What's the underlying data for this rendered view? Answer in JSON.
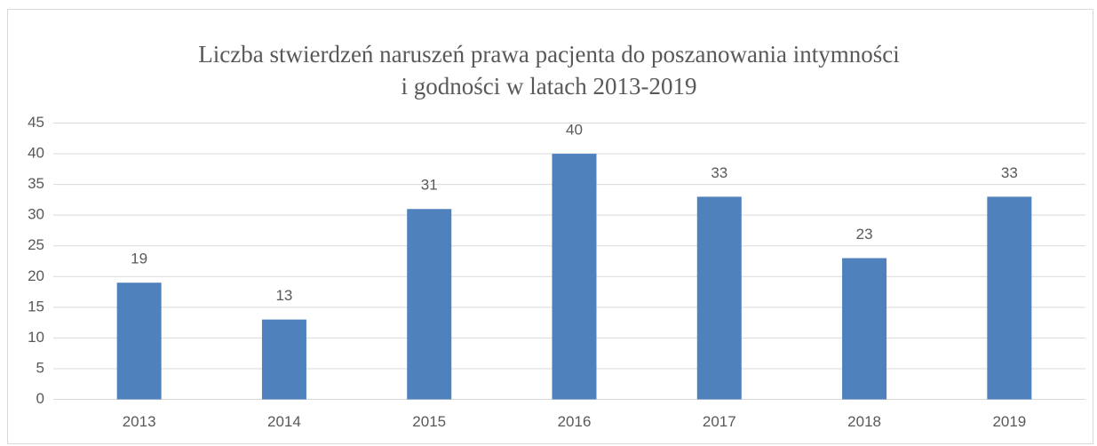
{
  "chart_data": {
    "type": "bar",
    "title": [
      "Liczba stwierdzeń naruszeń prawa pacjenta do poszanowania intymności",
      "i godności w latach 2013-2019"
    ],
    "categories": [
      "2013",
      "2014",
      "2015",
      "2016",
      "2017",
      "2018",
      "2019"
    ],
    "values": [
      19,
      13,
      31,
      40,
      33,
      23,
      33
    ],
    "color": "#4f81bd",
    "ylim": [
      0,
      45
    ],
    "yticks": [
      0,
      5,
      10,
      15,
      20,
      25,
      30,
      35,
      40,
      45
    ],
    "grid": true
  }
}
